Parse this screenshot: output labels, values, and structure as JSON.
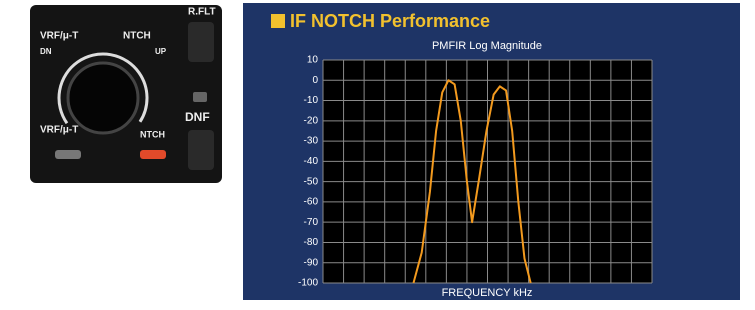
{
  "panel_labels": [
    "R.FLT",
    "VRF/μ-T",
    "NTCH",
    "DN",
    "UP",
    "DNF",
    "VRF/μ-T",
    "NTCH"
  ],
  "chart_data": {
    "type": "line",
    "title": "IF NOTCH Performance",
    "subtitle": "PMFIR  Log Magnitude",
    "x_label": "FREQUENCY  kHz",
    "x": [
      4.4,
      4.8,
      5.2,
      5.5,
      5.8,
      6.1,
      6.4,
      6.7,
      7.0,
      7.25,
      7.6,
      7.95,
      8.3,
      8.6,
      8.9,
      9.2,
      9.5,
      9.8,
      10.1
    ],
    "series": [
      {
        "color": "#f39a1e",
        "values": [
          -100,
          -85,
          -55,
          -25,
          -6,
          0,
          -2,
          -20,
          -50,
          -70,
          -48,
          -25,
          -7,
          -3,
          -5,
          -25,
          -60,
          -88,
          -100
        ]
      }
    ],
    "xlim": [
      0,
      16
    ],
    "ylim": [
      -100,
      10
    ],
    "yticks": [
      10,
      0,
      -10,
      -20,
      -30,
      -40,
      -50,
      -60,
      -70,
      -80,
      -90,
      -100
    ],
    "grid": true
  }
}
